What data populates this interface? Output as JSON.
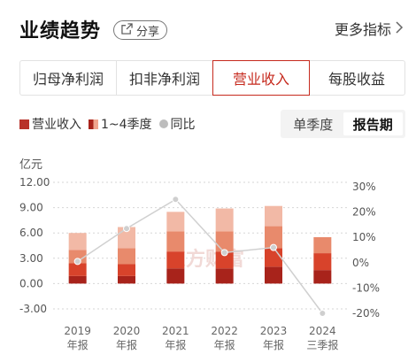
{
  "header": {
    "title": "业绩趋势",
    "share_label": "分享",
    "more_label": "更多指标"
  },
  "tabs": [
    {
      "label": "归母净利润",
      "active": false
    },
    {
      "label": "扣非净利润",
      "active": false
    },
    {
      "label": "营业收入",
      "active": true
    },
    {
      "label": "每股收益",
      "active": false
    }
  ],
  "legend": [
    {
      "label": "营业收入",
      "color": "#b8322a"
    },
    {
      "label": "1~4季度",
      "color": "#e8654a"
    },
    {
      "label": "同比",
      "color": "#bdbdbd"
    }
  ],
  "period": {
    "options": [
      "单季度",
      "报告期"
    ],
    "active": "报告期"
  },
  "watermark": "东方财富",
  "colors": {
    "accent": "#c62a1e",
    "q1": "#a8231b",
    "q2": "#d8432b",
    "q3": "#e88a6c",
    "q4": "#f2b9a6",
    "line": "#d0d0d0"
  },
  "chart_data": {
    "type": "bar",
    "unit": "亿元",
    "categories": [
      [
        "2019",
        "年报"
      ],
      [
        "2020",
        "年报"
      ],
      [
        "2021",
        "年报"
      ],
      [
        "2022",
        "年报"
      ],
      [
        "2023",
        "年报"
      ],
      [
        "2024",
        "三季报"
      ]
    ],
    "series": [
      {
        "name": "1季度",
        "values": [
          0.9,
          0.9,
          1.8,
          1.8,
          2.0,
          1.6
        ]
      },
      {
        "name": "2季度",
        "values": [
          1.5,
          1.4,
          2.0,
          2.0,
          2.2,
          2.0
        ]
      },
      {
        "name": "3季度",
        "values": [
          1.6,
          1.9,
          2.4,
          2.4,
          2.6,
          1.9
        ]
      },
      {
        "name": "4季度",
        "values": [
          2.0,
          2.5,
          2.3,
          2.7,
          2.4,
          null
        ]
      }
    ],
    "yoy": {
      "name": "同比",
      "unit": "%",
      "values": [
        0.5,
        13.5,
        25.0,
        4.0,
        6.0,
        -20.0
      ]
    },
    "ylim_left": [
      -3,
      12
    ],
    "yticks_left": [
      "12.00",
      "9.00",
      "6.00",
      "3.00",
      "0.00",
      "-3.00"
    ],
    "yticks_left_values": [
      12,
      9,
      6,
      3,
      0,
      -3
    ],
    "ylim_right": [
      -20,
      30
    ],
    "yticks_right": [
      "30%",
      "20%",
      "10%",
      "0%",
      "-10%",
      "-20%"
    ],
    "yticks_right_values": [
      30,
      20,
      10,
      0,
      -10,
      -20
    ]
  }
}
